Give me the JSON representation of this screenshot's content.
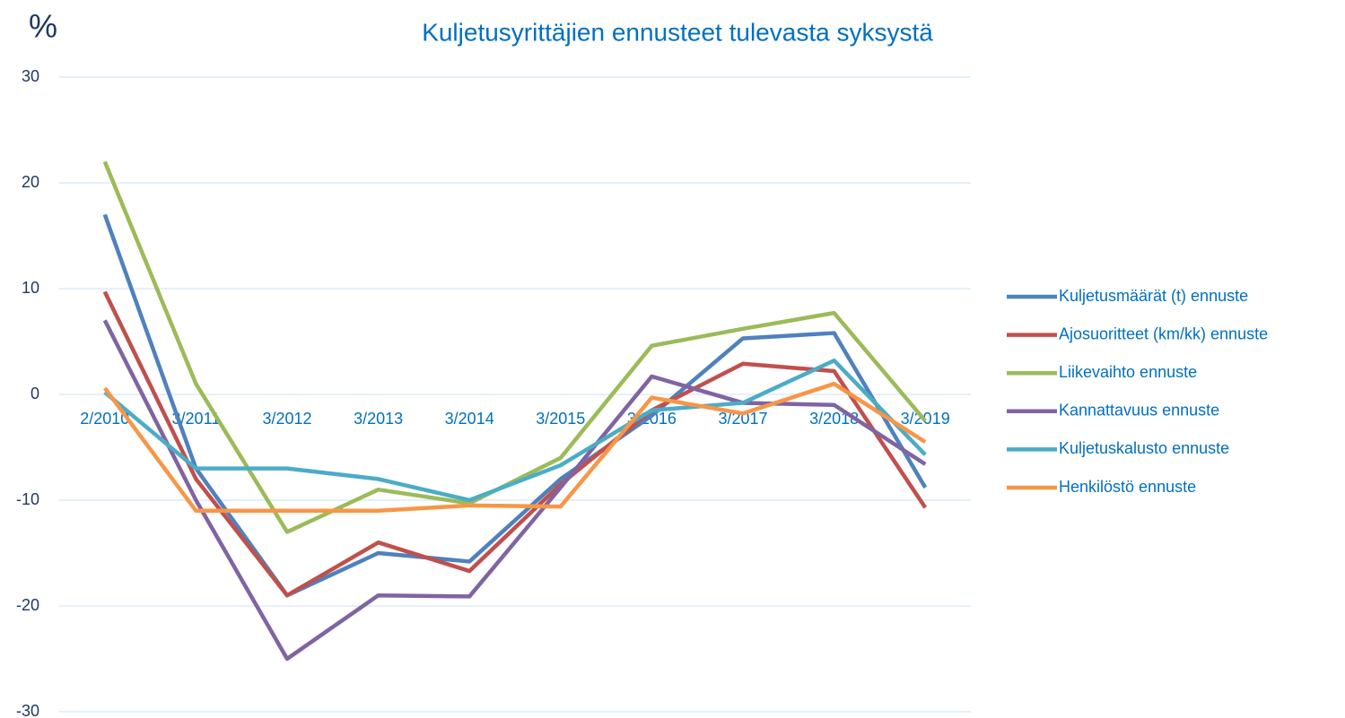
{
  "chart_data": {
    "type": "line",
    "title": "Kuljetusyrittäjien ennusteet tulevasta syksystä",
    "y_label": "%",
    "categories": [
      "2/2010",
      "3/2011",
      "3/2012",
      "3/2013",
      "3/2014",
      "3/2015",
      "3/2016",
      "3/2017",
      "3/2018",
      "3/2019"
    ],
    "series": [
      {
        "name": "Kuljetusmäärät (t) ennuste",
        "color": "#4f81bd",
        "values": [
          17,
          -7,
          -19,
          -15,
          -15.8,
          -8,
          -2,
          5.3,
          5.8,
          -8.8
        ]
      },
      {
        "name": "Ajosuoritteet (km/kk) ennuste",
        "color": "#c0504d",
        "values": [
          9.7,
          -8,
          -19,
          -14,
          -16.7,
          -8.5,
          -1.5,
          2.9,
          2.2,
          -10.7
        ]
      },
      {
        "name": "Liikevaihto ennuste",
        "color": "#9bbb59",
        "values": [
          22,
          1,
          -13,
          -9,
          -10.3,
          -6,
          4.6,
          6.2,
          7.7,
          -2.5
        ]
      },
      {
        "name": "Kannattavuus ennuste",
        "color": "#8064a2",
        "values": [
          7,
          -10,
          -25,
          -19,
          -19.1,
          -8.8,
          1.7,
          -0.8,
          -1,
          -6.6
        ]
      },
      {
        "name": "Kuljetuskalusto ennuste",
        "color": "#4bacc6",
        "values": [
          0.2,
          -7,
          -7,
          -8,
          -10,
          -6.7,
          -1.5,
          -0.8,
          3.2,
          -5.7
        ]
      },
      {
        "name": "Henkilöstö ennuste",
        "color": "#f79646",
        "values": [
          0.6,
          -11,
          -11,
          -11,
          -10.5,
          -10.6,
          -0.3,
          -1.8,
          1,
          -4.5
        ]
      }
    ],
    "ylim": [
      -30,
      30
    ],
    "yticks": [
      -30,
      -20,
      -10,
      0,
      10,
      20,
      30
    ],
    "grid": true,
    "legend": "right"
  }
}
